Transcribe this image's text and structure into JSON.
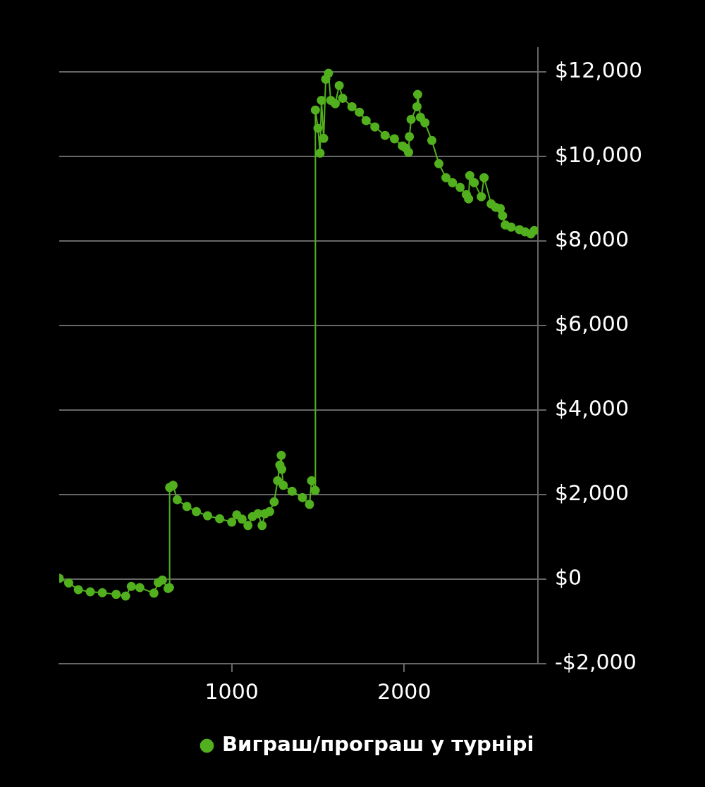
{
  "chart_data": {
    "type": "line",
    "x": [
      0,
      55,
      111,
      180,
      250,
      330,
      385,
      418,
      467,
      549,
      574,
      598,
      631,
      639,
      640,
      660,
      684,
      740,
      795,
      860,
      930,
      1000,
      1029,
      1060,
      1094,
      1120,
      1152,
      1176,
      1193,
      1220,
      1246,
      1266,
      1279,
      1287,
      1290,
      1299,
      1350,
      1410,
      1451,
      1463,
      1484,
      1485,
      1500,
      1512,
      1520,
      1533,
      1545,
      1561,
      1574,
      1600,
      1623,
      1643,
      1697,
      1740,
      1779,
      1830,
      1889,
      1943,
      1990,
      2010,
      2025,
      2030,
      2040,
      2074,
      2078,
      2094,
      2120,
      2160,
      2201,
      2242,
      2280,
      2324,
      2360,
      2373,
      2380,
      2406,
      2447,
      2463,
      2504,
      2530,
      2557,
      2570,
      2586,
      2620,
      2668,
      2700,
      2734,
      2754
    ],
    "series": [
      {
        "name": "Виграш/програш у турнірі",
        "color": "#52b01e",
        "values": [
          20,
          -90,
          -250,
          -300,
          -320,
          -360,
          -400,
          -170,
          -200,
          -330,
          -80,
          -20,
          -220,
          -200,
          2170,
          2220,
          1880,
          1720,
          1600,
          1500,
          1430,
          1350,
          1520,
          1420,
          1270,
          1480,
          1550,
          1270,
          1550,
          1600,
          1830,
          2330,
          2700,
          2930,
          2600,
          2220,
          2080,
          1930,
          1770,
          2330,
          2100,
          11100,
          10670,
          10080,
          11330,
          10430,
          11830,
          11970,
          11330,
          11250,
          11680,
          11380,
          11180,
          11050,
          10850,
          10700,
          10500,
          10420,
          10250,
          10200,
          10100,
          10470,
          10880,
          11180,
          11470,
          10930,
          10800,
          10380,
          9830,
          9500,
          9380,
          9270,
          9100,
          9000,
          9550,
          9380,
          9050,
          9500,
          8880,
          8800,
          8770,
          8600,
          8380,
          8330,
          8270,
          8220,
          8170,
          8250
        ]
      }
    ],
    "xlim": [
      0,
      2775
    ],
    "xticks": [
      1000,
      2000
    ],
    "ylim": [
      -2000,
      12570
    ],
    "yticks": [
      {
        "value": -2000,
        "label": "-$2,000"
      },
      {
        "value": 0,
        "label": "$0"
      },
      {
        "value": 2000,
        "label": "$2,000"
      },
      {
        "value": 4000,
        "label": "$4,000"
      },
      {
        "value": 6000,
        "label": "$6,000"
      },
      {
        "value": 8000,
        "label": "$8,000"
      },
      {
        "value": 10000,
        "label": "$10,000"
      },
      {
        "value": 12000,
        "label": "$12,000"
      }
    ],
    "grid": "y",
    "legend": "bottom",
    "marker": "circle",
    "line_style": "solid"
  }
}
